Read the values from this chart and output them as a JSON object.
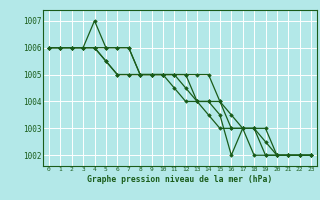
{
  "bg_color": "#b3e8e8",
  "grid_color": "#ffffff",
  "line_color": "#1a5c1a",
  "xlabel": "Graphe pression niveau de la mer (hPa)",
  "ylim": [
    1001.6,
    1007.4
  ],
  "yticks": [
    1002,
    1003,
    1004,
    1005,
    1006,
    1007
  ],
  "xlim": [
    -0.5,
    23.5
  ],
  "xticks": [
    0,
    1,
    2,
    3,
    4,
    5,
    6,
    7,
    8,
    9,
    10,
    11,
    12,
    13,
    14,
    15,
    16,
    17,
    18,
    19,
    20,
    21,
    22,
    23
  ],
  "series": [
    [
      1006.0,
      1006.0,
      1006.0,
      1006.0,
      1007.0,
      1006.0,
      1006.0,
      1006.0,
      1005.0,
      1005.0,
      1005.0,
      1005.0,
      1005.0,
      1005.0,
      1005.0,
      1004.0,
      1003.0,
      1003.0,
      1003.0,
      1002.0,
      1002.0,
      1002.0,
      1002.0,
      1002.0
    ],
    [
      1006.0,
      1006.0,
      1006.0,
      1006.0,
      1006.0,
      1006.0,
      1006.0,
      1006.0,
      1005.0,
      1005.0,
      1005.0,
      1005.0,
      1004.5,
      1004.0,
      1004.0,
      1003.5,
      1002.0,
      1003.0,
      1002.0,
      1002.0,
      1002.0,
      1002.0,
      1002.0,
      1002.0
    ],
    [
      1006.0,
      1006.0,
      1006.0,
      1006.0,
      1006.0,
      1005.5,
      1005.0,
      1005.0,
      1005.0,
      1005.0,
      1005.0,
      1005.0,
      1005.0,
      1004.0,
      1004.0,
      1004.0,
      1003.5,
      1003.0,
      1003.0,
      1002.5,
      1002.0,
      1002.0,
      1002.0,
      1002.0
    ],
    [
      1006.0,
      1006.0,
      1006.0,
      1006.0,
      1006.0,
      1005.5,
      1005.0,
      1005.0,
      1005.0,
      1005.0,
      1005.0,
      1004.5,
      1004.0,
      1004.0,
      1003.5,
      1003.0,
      1003.0,
      1003.0,
      1003.0,
      1003.0,
      1002.0,
      1002.0,
      1002.0,
      1002.0
    ]
  ]
}
